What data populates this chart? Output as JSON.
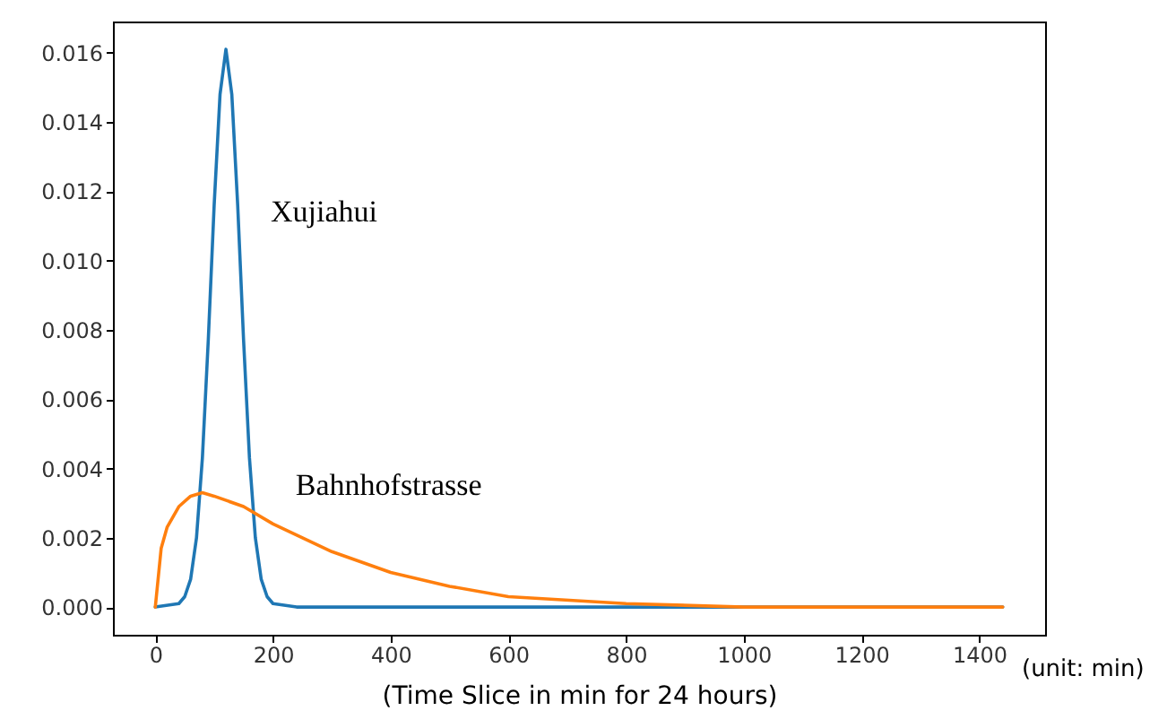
{
  "chart_data": {
    "type": "line",
    "xlabel": "(Time Slice in min for 24 hours)",
    "annotations": [
      "(unit: min)"
    ],
    "xlim": [
      -72,
      1512
    ],
    "xticks": [
      0,
      200,
      400,
      600,
      800,
      1000,
      1200,
      1400
    ],
    "ylim": [
      -0.0008,
      0.0169
    ],
    "yticks": [
      {
        "value": 0,
        "label": "0.000"
      },
      {
        "value": 0.002,
        "label": "0.002"
      },
      {
        "value": 0.004,
        "label": "0.004"
      },
      {
        "value": 0.006,
        "label": "0.006"
      },
      {
        "value": 0.008,
        "label": "0.008"
      },
      {
        "value": 0.01,
        "label": "0.010"
      },
      {
        "value": 0.012,
        "label": "0.012"
      },
      {
        "value": 0.014,
        "label": "0.014"
      },
      {
        "value": 0.016,
        "label": "0.016"
      }
    ],
    "grid": false,
    "marker": "none",
    "line_style": "solid",
    "series": [
      {
        "name": "Xujiahui",
        "color": "#1f77b4",
        "x": [
          0,
          40,
          50,
          60,
          70,
          80,
          90,
          100,
          110,
          120,
          130,
          140,
          150,
          160,
          170,
          180,
          190,
          200,
          240,
          1440
        ],
        "values": [
          0,
          0.0001,
          0.0003,
          0.0008,
          0.002,
          0.0043,
          0.0077,
          0.0116,
          0.0148,
          0.0161,
          0.0148,
          0.0116,
          0.0077,
          0.0043,
          0.002,
          0.0008,
          0.0003,
          0.0001,
          0,
          0
        ]
      },
      {
        "name": "Bahnhofstrasse",
        "color": "#ff7f0e",
        "x": [
          0,
          10,
          20,
          40,
          60,
          80,
          100,
          150,
          200,
          250,
          300,
          400,
          500,
          600,
          800,
          1000,
          1440
        ],
        "values": [
          0,
          0.0017,
          0.0023,
          0.0029,
          0.0032,
          0.0033,
          0.0032,
          0.0029,
          0.0024,
          0.002,
          0.0016,
          0.001,
          0.0006,
          0.0003,
          0.0001,
          0,
          0
        ]
      }
    ]
  }
}
